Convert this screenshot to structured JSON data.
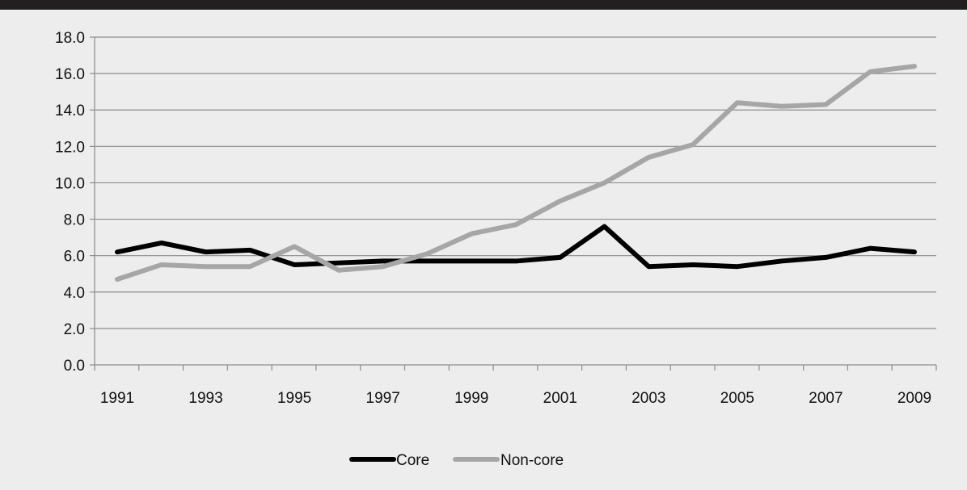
{
  "chart_data": {
    "type": "line",
    "title": "",
    "xlabel": "",
    "ylabel": "",
    "ylim": [
      0,
      18
    ],
    "y_ticks": [
      "0.0",
      "2.0",
      "4.0",
      "6.0",
      "8.0",
      "10.0",
      "12.0",
      "14.0",
      "16.0",
      "18.0"
    ],
    "x": [
      1991,
      1992,
      1993,
      1994,
      1995,
      1996,
      1997,
      1998,
      1999,
      2000,
      2001,
      2002,
      2003,
      2004,
      2005,
      2006,
      2007,
      2008,
      2009
    ],
    "x_tick_labels": [
      "1991",
      "1993",
      "1995",
      "1997",
      "1999",
      "2001",
      "2003",
      "2005",
      "2007",
      "2009"
    ],
    "grid": "horizontal",
    "legend_position": "bottom",
    "series": [
      {
        "name": "Core",
        "color": "#000000",
        "values": [
          6.2,
          6.7,
          6.2,
          6.3,
          5.5,
          5.6,
          5.7,
          5.7,
          5.7,
          5.7,
          5.9,
          7.6,
          5.4,
          5.5,
          5.4,
          5.7,
          5.9,
          6.4,
          6.2
        ]
      },
      {
        "name": "Non-core",
        "color": "#a6a6a6",
        "values": [
          4.7,
          5.5,
          5.4,
          5.4,
          6.5,
          5.2,
          5.4,
          6.1,
          7.2,
          7.7,
          9.0,
          10.0,
          11.4,
          12.1,
          14.4,
          14.2,
          14.3,
          16.1,
          16.4
        ]
      }
    ]
  }
}
